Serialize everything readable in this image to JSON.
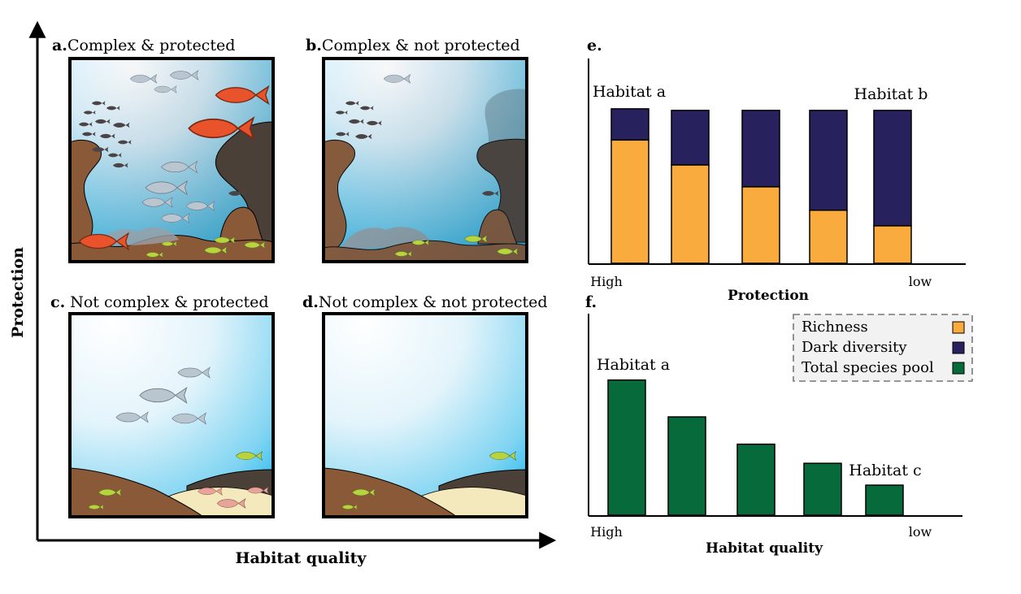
{
  "axes": {
    "y_label": "Protection",
    "x_label": "Habitat quality"
  },
  "panels": [
    {
      "id": "a",
      "letter": "a.",
      "title": "Complex & protected"
    },
    {
      "id": "b",
      "letter": "b.",
      "title": "Complex & not protected"
    },
    {
      "id": "c",
      "letter": "c.",
      "title": " Not complex & protected"
    },
    {
      "id": "d",
      "letter": "d.",
      "title": "Not complex & not protected"
    }
  ],
  "legend": {
    "items": [
      {
        "label": "Richness",
        "color": "#f9ac3d"
      },
      {
        "label": "Dark diversity",
        "color": "#27215d"
      },
      {
        "label": "Total species pool",
        "color": "#076a3b"
      }
    ]
  },
  "colors": {
    "richness": "#f9ac3d",
    "dark_diversity": "#27215d",
    "total_pool": "#076a3b",
    "rock_brown": "#8a5a38",
    "rock_dark": "#4b4038",
    "sand": "#f4e9bd",
    "water_top": "#ffffff",
    "water_edge": "#2bbdf0",
    "fish_red": "#e8532b",
    "fish_grey": "#b9c5cf",
    "fish_green": "#b9d33c"
  },
  "chart_data": [
    {
      "id": "e",
      "letter": "e.",
      "type": "bar",
      "stacked": true,
      "xlabel": "Protection",
      "x_tick_left": "High",
      "x_tick_right": "low",
      "series": [
        {
          "name": "Richness",
          "values": [
            0.79,
            0.63,
            0.49,
            0.34,
            0.24
          ]
        },
        {
          "name": "Dark diversity",
          "values": [
            0.2,
            0.35,
            0.49,
            0.64,
            0.74
          ]
        }
      ],
      "ylim": [
        0,
        1.0
      ],
      "annotations": [
        {
          "text": "Habitat a",
          "bar_index": 0
        },
        {
          "text": "Habitat b",
          "bar_index": 4
        }
      ]
    },
    {
      "id": "f",
      "letter": "f.",
      "type": "bar",
      "xlabel": "Habitat quality",
      "x_tick_left": "High",
      "x_tick_right": "low",
      "series": [
        {
          "name": "Total species pool",
          "values": [
            0.99,
            0.72,
            0.52,
            0.38,
            0.22
          ]
        }
      ],
      "ylim": [
        0,
        1.0
      ],
      "annotations": [
        {
          "text": "Habitat a",
          "bar_index": 0
        },
        {
          "text": "Habitat c",
          "bar_index": 4
        }
      ]
    }
  ]
}
